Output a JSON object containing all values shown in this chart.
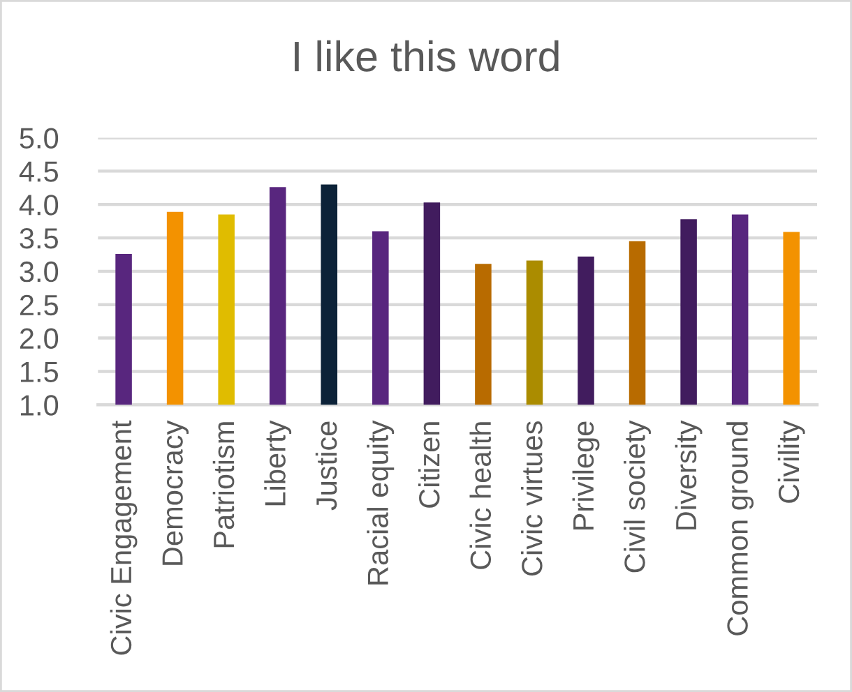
{
  "chart_data": {
    "type": "bar",
    "title": "I like this word",
    "categories": [
      "Civic Engagement",
      "Democracy",
      "Patriotism",
      "Liberty",
      "Justice",
      "Racial equity",
      "Citizen",
      "Civic health",
      "Civic virtues",
      "Privilege",
      "Civil society",
      "Diversity",
      "Common ground",
      "Civility"
    ],
    "values": [
      3.26,
      3.89,
      3.85,
      4.26,
      4.3,
      3.6,
      4.03,
      3.11,
      3.16,
      3.22,
      3.45,
      3.78,
      3.85,
      3.59
    ],
    "colors": [
      "#58267e",
      "#f39200",
      "#e0bc00",
      "#58267e",
      "#0c2238",
      "#58267e",
      "#411c5e",
      "#b86b00",
      "#ab8c00",
      "#411c5e",
      "#b86b00",
      "#411c5e",
      "#58267e",
      "#f39200"
    ],
    "ylim": [
      1.0,
      5.0
    ],
    "yticks": [
      {
        "value": 1.0,
        "label": "1.0"
      },
      {
        "value": 1.5,
        "label": "1.5"
      },
      {
        "value": 2.0,
        "label": "2.0"
      },
      {
        "value": 2.5,
        "label": "2.5"
      },
      {
        "value": 3.0,
        "label": "3.0"
      },
      {
        "value": 3.5,
        "label": "3.5"
      },
      {
        "value": 4.0,
        "label": "4.0"
      },
      {
        "value": 4.5,
        "label": "4.5"
      },
      {
        "value": 5.0,
        "label": "5.0"
      }
    ],
    "grid": "y",
    "legend": false
  }
}
